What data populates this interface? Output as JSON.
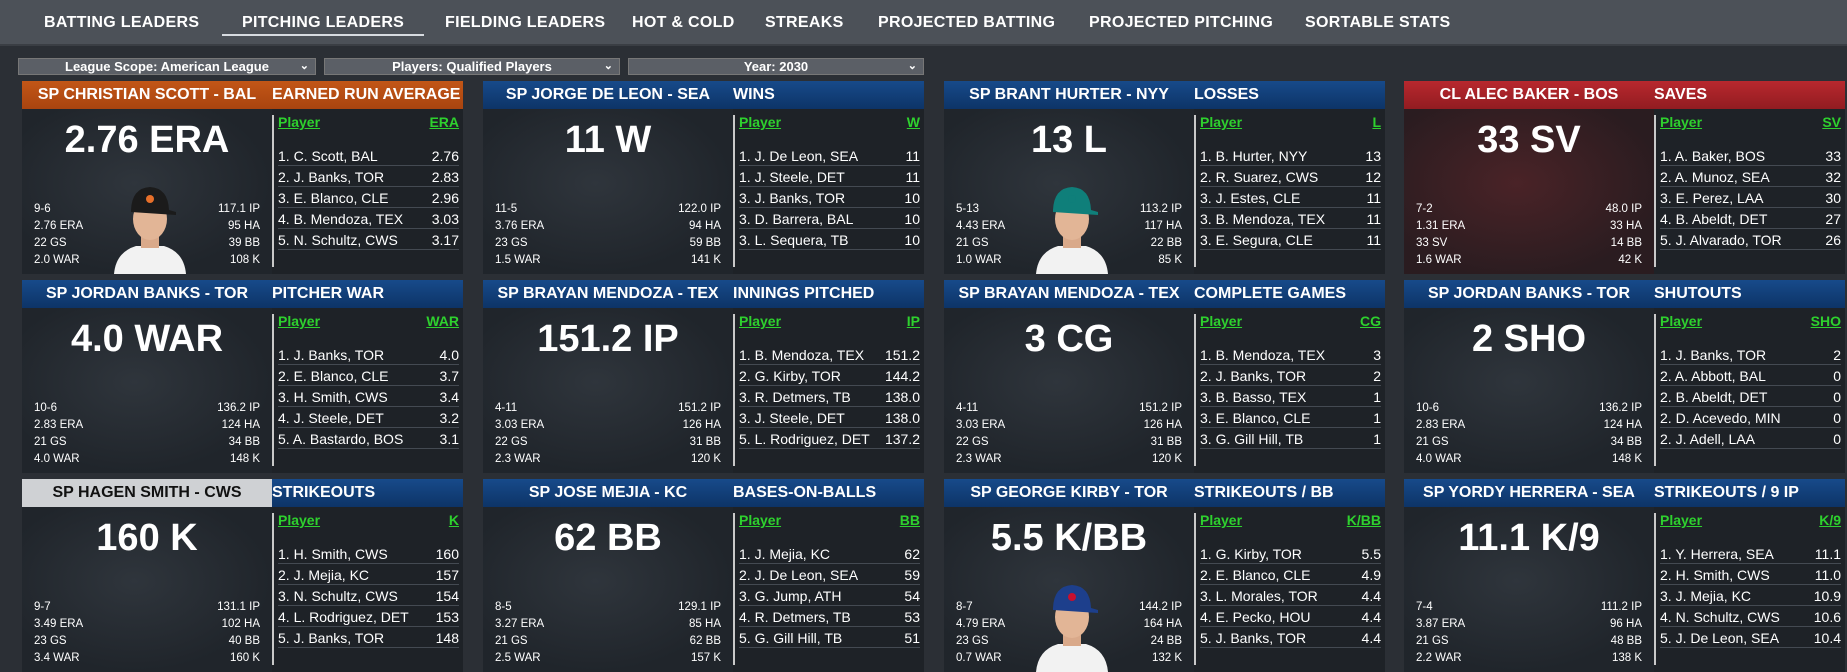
{
  "tabs": [
    {
      "label": "BATTING LEADERS"
    },
    {
      "label": "PITCHING LEADERS"
    },
    {
      "label": "FIELDING LEADERS"
    },
    {
      "label": "HOT & COLD"
    },
    {
      "label": "STREAKS"
    },
    {
      "label": "PROJECTED BATTING"
    },
    {
      "label": "PROJECTED PITCHING"
    },
    {
      "label": "SORTABLE STATS"
    }
  ],
  "active_tab": "PITCHING LEADERS",
  "filters": {
    "scope": "League Scope: American League",
    "players": "Players: Qualified Players",
    "year": "Year: 2030"
  },
  "colors": {
    "orange": "#b34a12",
    "blue": "#103d78",
    "red": "#a32226",
    "gray": "#cfd1d4",
    "green": "#2ed12e",
    "background": "#2b2f35"
  },
  "cards": [
    {
      "name": "SP CHRISTIAN SCOTT - BAL",
      "category": "EARNED RUN AVERAGE",
      "value": "2.76 ERA",
      "header_color": "orange",
      "stats_left": [
        "9-6",
        "2.76 ERA",
        "22 GS",
        "2.0 WAR"
      ],
      "stats_right": [
        "117.1 IP",
        "95 HA",
        "39 BB",
        "108 K"
      ],
      "col_player": "Player",
      "col_stat": "ERA",
      "photo": "orioles-cap-player-photo",
      "leaders": [
        {
          "player": "1. C. Scott, BAL",
          "value": "2.76"
        },
        {
          "player": "2. J. Banks, TOR",
          "value": "2.83"
        },
        {
          "player": "3. E. Blanco, CLE",
          "value": "2.96"
        },
        {
          "player": "4. B. Mendoza, TEX",
          "value": "3.03"
        },
        {
          "player": "5. N. Schultz, CWS",
          "value": "3.17"
        }
      ]
    },
    {
      "name": "SP JORGE DE LEON - SEA",
      "category": "WINS",
      "value": "11 W",
      "header_color": "blue",
      "stats_left": [
        "11-5",
        "3.76 ERA",
        "23 GS",
        "1.5 WAR"
      ],
      "stats_right": [
        "122.0 IP",
        "94 HA",
        "59 BB",
        "141 K"
      ],
      "col_player": "Player",
      "col_stat": "W",
      "photo": "",
      "leaders": [
        {
          "player": "1. J. De Leon, SEA",
          "value": "11"
        },
        {
          "player": "1. J. Steele, DET",
          "value": "11"
        },
        {
          "player": "3. J. Banks, TOR",
          "value": "10"
        },
        {
          "player": "3. D. Barrera, BAL",
          "value": "10"
        },
        {
          "player": "3. L. Sequera, TB",
          "value": "10"
        }
      ]
    },
    {
      "name": "SP BRANT HURTER - NYY",
      "category": "LOSSES",
      "value": "13 L",
      "header_color": "blue",
      "stats_left": [
        "5-13",
        "4.43 ERA",
        "21 GS",
        "1.0 WAR"
      ],
      "stats_right": [
        "113.2 IP",
        "117 HA",
        "22 BB",
        "85 K"
      ],
      "col_player": "Player",
      "col_stat": "L",
      "photo": "teal-cap-player-photo",
      "leaders": [
        {
          "player": "1. B. Hurter, NYY",
          "value": "13"
        },
        {
          "player": "2. R. Suarez, CWS",
          "value": "12"
        },
        {
          "player": "3. J. Estes, CLE",
          "value": "11"
        },
        {
          "player": "3. B. Mendoza, TEX",
          "value": "11"
        },
        {
          "player": "3. E. Segura, CLE",
          "value": "11"
        }
      ]
    },
    {
      "name": "CL ALEC BAKER - BOS",
      "category": "SAVES",
      "value": "33 SV",
      "header_color": "red",
      "stats_left": [
        "7-2",
        "1.31 ERA",
        "33 SV",
        "1.6 WAR"
      ],
      "stats_right": [
        "48.0 IP",
        "33 HA",
        "14 BB",
        "42 K"
      ],
      "col_player": "Player",
      "col_stat": "SV",
      "photo": "",
      "leaders": [
        {
          "player": "1. A. Baker, BOS",
          "value": "33"
        },
        {
          "player": "2. A. Munoz, SEA",
          "value": "32"
        },
        {
          "player": "3. E. Perez, LAA",
          "value": "30"
        },
        {
          "player": "4. B. Abeldt, DET",
          "value": "27"
        },
        {
          "player": "5. J. Alvarado, TOR",
          "value": "26"
        }
      ]
    },
    {
      "name": "SP JORDAN BANKS - TOR",
      "category": "PITCHER WAR",
      "value": "4.0 WAR",
      "header_color": "blue",
      "stats_left": [
        "10-6",
        "2.83 ERA",
        "21 GS",
        "4.0 WAR"
      ],
      "stats_right": [
        "136.2 IP",
        "124 HA",
        "34 BB",
        "148 K"
      ],
      "col_player": "Player",
      "col_stat": "WAR",
      "photo": "",
      "leaders": [
        {
          "player": "1. J. Banks, TOR",
          "value": "4.0"
        },
        {
          "player": "2. E. Blanco, CLE",
          "value": "3.7"
        },
        {
          "player": "3. H. Smith, CWS",
          "value": "3.4"
        },
        {
          "player": "4. J. Steele, DET",
          "value": "3.2"
        },
        {
          "player": "5. A. Bastardo, BOS",
          "value": "3.1"
        }
      ]
    },
    {
      "name": "SP BRAYAN MENDOZA - TEX",
      "category": "INNINGS PITCHED",
      "value": "151.2 IP",
      "header_color": "blue",
      "stats_left": [
        "4-11",
        "3.03 ERA",
        "22 GS",
        "2.3 WAR"
      ],
      "stats_right": [
        "151.2 IP",
        "126 HA",
        "31 BB",
        "120 K"
      ],
      "col_player": "Player",
      "col_stat": "IP",
      "photo": "",
      "leaders": [
        {
          "player": "1. B. Mendoza, TEX",
          "value": "151.2"
        },
        {
          "player": "2. G. Kirby, TOR",
          "value": "144.2"
        },
        {
          "player": "3. R. Detmers, TB",
          "value": "138.0"
        },
        {
          "player": "3. J. Steele, DET",
          "value": "138.0"
        },
        {
          "player": "5. L. Rodriguez, DET",
          "value": "137.2"
        }
      ]
    },
    {
      "name": "SP BRAYAN MENDOZA - TEX",
      "category": "COMPLETE GAMES",
      "value": "3 CG",
      "header_color": "blue",
      "stats_left": [
        "4-11",
        "3.03 ERA",
        "22 GS",
        "2.3 WAR"
      ],
      "stats_right": [
        "151.2 IP",
        "126 HA",
        "31 BB",
        "120 K"
      ],
      "col_player": "Player",
      "col_stat": "CG",
      "photo": "",
      "leaders": [
        {
          "player": "1. B. Mendoza, TEX",
          "value": "3"
        },
        {
          "player": "2. J. Banks, TOR",
          "value": "2"
        },
        {
          "player": "3. B. Basso, TEX",
          "value": "1"
        },
        {
          "player": "3. E. Blanco, CLE",
          "value": "1"
        },
        {
          "player": "3. G. Gill Hill, TB",
          "value": "1"
        }
      ]
    },
    {
      "name": "SP JORDAN BANKS - TOR",
      "category": "SHUTOUTS",
      "value": "2 SHO",
      "header_color": "blue",
      "stats_left": [
        "10-6",
        "2.83 ERA",
        "21 GS",
        "4.0 WAR"
      ],
      "stats_right": [
        "136.2 IP",
        "124 HA",
        "34 BB",
        "148 K"
      ],
      "col_player": "Player",
      "col_stat": "SHO",
      "photo": "",
      "leaders": [
        {
          "player": "1. J. Banks, TOR",
          "value": "2"
        },
        {
          "player": "2. A. Abbott, BAL",
          "value": "0"
        },
        {
          "player": "2. B. Abeldt, DET",
          "value": "0"
        },
        {
          "player": "2. D. Acevedo, MIN",
          "value": "0"
        },
        {
          "player": "2. J. Adell, LAA",
          "value": "0"
        }
      ]
    },
    {
      "name": "SP HAGEN SMITH - CWS",
      "category": "STRIKEOUTS",
      "value": "160 K",
      "header_color": "gray",
      "stats_left": [
        "9-7",
        "3.49 ERA",
        "23 GS",
        "3.4 WAR"
      ],
      "stats_right": [
        "131.1 IP",
        "102 HA",
        "40 BB",
        "160 K"
      ],
      "col_player": "Player",
      "col_stat": "K",
      "photo": "",
      "leaders": [
        {
          "player": "1. H. Smith, CWS",
          "value": "160"
        },
        {
          "player": "2. J. Mejia, KC",
          "value": "157"
        },
        {
          "player": "3. N. Schultz, CWS",
          "value": "154"
        },
        {
          "player": "4. L. Rodriguez, DET",
          "value": "153"
        },
        {
          "player": "5. J. Banks, TOR",
          "value": "148"
        }
      ]
    },
    {
      "name": "SP JOSE MEJIA - KC",
      "category": "BASES-ON-BALLS",
      "value": "62 BB",
      "header_color": "blue",
      "stats_left": [
        "8-5",
        "3.27 ERA",
        "21 GS",
        "2.5 WAR"
      ],
      "stats_right": [
        "129.1 IP",
        "85 HA",
        "62 BB",
        "157 K"
      ],
      "col_player": "Player",
      "col_stat": "BB",
      "photo": "",
      "leaders": [
        {
          "player": "1. J. Mejia, KC",
          "value": "62"
        },
        {
          "player": "2. J. De Leon, SEA",
          "value": "59"
        },
        {
          "player": "3. G. Jump, ATH",
          "value": "54"
        },
        {
          "player": "4. R. Detmers, TB",
          "value": "53"
        },
        {
          "player": "5. G. Gill Hill, TB",
          "value": "51"
        }
      ]
    },
    {
      "name": "SP GEORGE KIRBY - TOR",
      "category": "STRIKEOUTS / BB",
      "value": "5.5 K/BB",
      "header_color": "blue",
      "stats_left": [
        "8-7",
        "4.79 ERA",
        "23 GS",
        "0.7 WAR"
      ],
      "stats_right": [
        "144.2 IP",
        "164 HA",
        "24 BB",
        "132 K"
      ],
      "col_player": "Player",
      "col_stat": "K/BB",
      "photo": "blue-jays-cap-player-photo",
      "leaders": [
        {
          "player": "1. G. Kirby, TOR",
          "value": "5.5"
        },
        {
          "player": "2. E. Blanco, CLE",
          "value": "4.9"
        },
        {
          "player": "3. L. Morales, TOR",
          "value": "4.4"
        },
        {
          "player": "4. E. Pecko, HOU",
          "value": "4.4"
        },
        {
          "player": "5. J. Banks, TOR",
          "value": "4.4"
        }
      ]
    },
    {
      "name": "SP YORDY HERRERA - SEA",
      "category": "STRIKEOUTS / 9 IP",
      "value": "11.1 K/9",
      "header_color": "blue",
      "stats_left": [
        "7-4",
        "3.87 ERA",
        "21 GS",
        "2.2 WAR"
      ],
      "stats_right": [
        "111.2 IP",
        "96 HA",
        "48 BB",
        "138 K"
      ],
      "col_player": "Player",
      "col_stat": "K/9",
      "photo": "",
      "leaders": [
        {
          "player": "1. Y. Herrera, SEA",
          "value": "11.1"
        },
        {
          "player": "2. H. Smith, CWS",
          "value": "11.0"
        },
        {
          "player": "3. J. Mejia, KC",
          "value": "10.9"
        },
        {
          "player": "4. N. Schultz, CWS",
          "value": "10.6"
        },
        {
          "player": "5. J. De Leon, SEA",
          "value": "10.4"
        }
      ]
    }
  ]
}
